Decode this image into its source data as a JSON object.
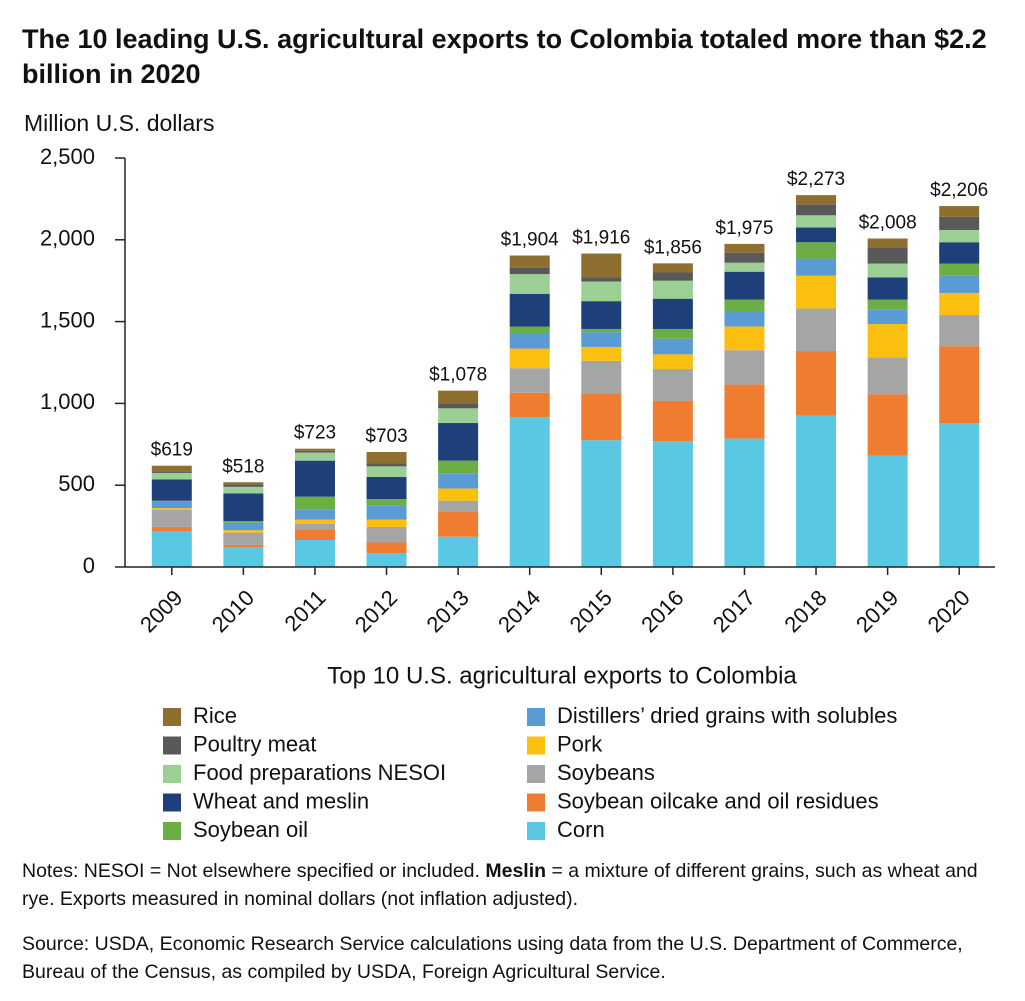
{
  "chart_data": {
    "type": "stacked_bar",
    "title": "The 10 leading U.S. agricultural exports to Colombia totaled more than $2.2 billion in 2020",
    "y_axis_label": "Million U.S. dollars",
    "categories": [
      "2009",
      "2010",
      "2011",
      "2012",
      "2013",
      "2014",
      "2015",
      "2016",
      "2017",
      "2018",
      "2019",
      "2020"
    ],
    "ylim": [
      0,
      2500
    ],
    "yticks": [
      0,
      500,
      {
        "value": 1000,
        "label": "1,000"
      },
      {
        "value": 1500,
        "label": "1,500"
      },
      {
        "value": 2000,
        "label": "2,000"
      },
      {
        "value": 2500,
        "label": "2,500"
      }
    ],
    "legend_title": "Top 10 U.S. agricultural exports to Colombia",
    "series": [
      {
        "name": "Corn",
        "color": "#5bc8e3",
        "values": [
          220,
          120,
          165,
          85,
          185,
          915,
          775,
          770,
          785,
          925,
          680,
          880
        ]
      },
      {
        "name": "Soybean oilcake and oil residues",
        "color": "#ee7d32",
        "values": [
          25,
          15,
          65,
          65,
          155,
          150,
          285,
          245,
          330,
          395,
          375,
          470
        ]
      },
      {
        "name": "Soybeans",
        "color": "#a5a5a5",
        "values": [
          105,
          75,
          35,
          95,
          65,
          150,
          200,
          195,
          210,
          260,
          225,
          190
        ]
      },
      {
        "name": "Pork",
        "color": "#fbbf10",
        "values": [
          10,
          15,
          25,
          45,
          75,
          120,
          85,
          90,
          145,
          200,
          205,
          135
        ]
      },
      {
        "name": "Distillers’ dried grains with solubles",
        "color": "#5b9bd5",
        "values": [
          40,
          45,
          60,
          85,
          90,
          95,
          90,
          95,
          95,
          105,
          90,
          105
        ]
      },
      {
        "name": "Soybean oil",
        "color": "#6aae44",
        "values": [
          5,
          10,
          80,
          40,
          80,
          40,
          20,
          60,
          70,
          100,
          60,
          75
        ]
      },
      {
        "name": "Wheat and meslin",
        "color": "#1f3f7a",
        "values": [
          130,
          170,
          220,
          135,
          230,
          200,
          170,
          185,
          170,
          90,
          135,
          130
        ]
      },
      {
        "name": "Food preparations NESOI",
        "color": "#9bcf94",
        "values": [
          40,
          40,
          50,
          65,
          90,
          120,
          120,
          110,
          55,
          75,
          85,
          75
        ]
      },
      {
        "name": "Poultry meat",
        "color": "#595959",
        "values": [
          10,
          15,
          10,
          20,
          30,
          40,
          25,
          50,
          60,
          65,
          100,
          80
        ]
      },
      {
        "name": "Rice",
        "color": "#8e6f2f",
        "values": [
          34,
          13,
          13,
          68,
          78,
          74,
          146,
          56,
          55,
          58,
          53,
          66
        ]
      }
    ],
    "totals": [
      619,
      518,
      723,
      703,
      1078,
      1904,
      1916,
      1856,
      1975,
      2273,
      2008,
      2206
    ],
    "total_labels": [
      "$619",
      "$518",
      "$723",
      "$703",
      "$1,078",
      "$1,904",
      "$1,916",
      "$1,856",
      "$1,975",
      "$2,273",
      "$2,008",
      "$2,206"
    ]
  },
  "notes": {
    "prefix": "Notes: NESOI = Not elsewhere specified or included. ",
    "bold": "Meslin",
    "rest": " = a mixture of different grains, such as wheat and rye. Exports measured in nominal dollars (not inflation adjusted)."
  },
  "source": "Source: USDA, Economic Research Service calculations using data from the U.S. Department of Commerce, Bureau of the Census, as compiled by USDA, Foreign Agricultural Service."
}
